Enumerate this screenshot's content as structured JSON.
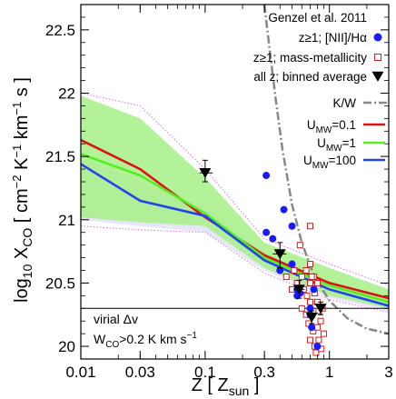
{
  "chart_data": {
    "type": "scatter",
    "xlabel": "Z [ Z",
    "xlabel_sub": "sun",
    "xlabel_end": " ]",
    "ylabel_prefix": "log",
    "ylabel_prefix_sub": "10",
    "ylabel_main": " X",
    "ylabel_main_sub": "CO",
    "ylabel_units": " [ cm",
    "ylabel_units_sup1": "−2",
    "ylabel_units_mid1": " K",
    "ylabel_units_sup2": "−1",
    "ylabel_units_mid2": " km",
    "ylabel_units_sup3": "−1",
    "ylabel_units_end": " s ]",
    "x_scale": "log",
    "xlim": [
      0.01,
      3
    ],
    "ylim": [
      19.9,
      22.7
    ],
    "x_ticks": [
      {
        "value": 0.01,
        "label": "0.01"
      },
      {
        "value": 0.03,
        "label": "0.03"
      },
      {
        "value": 0.1,
        "label": "0.1"
      },
      {
        "value": 0.3,
        "label": "0.3"
      },
      {
        "value": 1,
        "label": "1"
      },
      {
        "value": 3,
        "label": "3"
      }
    ],
    "y_ticks": [
      {
        "value": 20,
        "label": "20"
      },
      {
        "value": 20.5,
        "label": "20.5"
      },
      {
        "value": 21,
        "label": "21"
      },
      {
        "value": 21.5,
        "label": "21.5"
      },
      {
        "value": 22,
        "label": "22"
      },
      {
        "value": 22.5,
        "label": "22.5"
      }
    ],
    "virial_line_y": 20.3,
    "legend": {
      "title": "Genzel et al. 2011",
      "entries": [
        {
          "key": "nii",
          "text": "z≥1; [NII]/Hα"
        },
        {
          "key": "mm",
          "text": "z≥1; mass-metallicity"
        },
        {
          "key": "avg",
          "text": "all z; binned average"
        },
        {
          "key": "kw",
          "text": "K/W"
        },
        {
          "key": "u01",
          "text_main": "U",
          "text_sub": "MW",
          "text_end": "=0.1"
        },
        {
          "key": "u1",
          "text_main": "U",
          "text_sub": "MW",
          "text_end": "=1"
        },
        {
          "key": "u100",
          "text_main": "U",
          "text_sub": "MW",
          "text_end": "=100"
        }
      ]
    },
    "annotation": {
      "line1": "virial Δv",
      "line2_main": "W",
      "line2_sub": "CO",
      "line2_end": ">0.2 K km s",
      "line2_sup": "−1"
    },
    "colors": {
      "nii": "#1a1aff",
      "mm": "#cc2222",
      "avg": "#000000",
      "kw": "#888888",
      "u01": "#dd1111",
      "u1": "#55ee22",
      "u100": "#2244ee",
      "band_green": "#a6f086",
      "band_blue": "#e6e6f8",
      "band_pink": "#e070e0"
    },
    "series": [
      {
        "name": "z≥1; [NII]/Hα",
        "key": "nii",
        "marker": "circle",
        "points": [
          {
            "x": 0.31,
            "y": 21.35
          },
          {
            "x": 0.31,
            "y": 20.9
          },
          {
            "x": 0.35,
            "y": 20.85
          },
          {
            "x": 0.43,
            "y": 21.08
          },
          {
            "x": 0.5,
            "y": 20.95
          },
          {
            "x": 0.4,
            "y": 20.6
          },
          {
            "x": 0.5,
            "y": 20.65
          },
          {
            "x": 0.55,
            "y": 20.45
          },
          {
            "x": 0.55,
            "y": 20.4
          },
          {
            "x": 0.58,
            "y": 20.42
          },
          {
            "x": 0.7,
            "y": 20.25
          },
          {
            "x": 0.72,
            "y": 20.15
          },
          {
            "x": 0.8,
            "y": 20.0
          },
          {
            "x": 0.75,
            "y": 20.45
          },
          {
            "x": 0.7,
            "y": 20.3
          }
        ]
      },
      {
        "name": "z≥1; mass-metallicity",
        "key": "mm",
        "marker": "square",
        "points": [
          {
            "x": 0.58,
            "y": 20.8
          },
          {
            "x": 0.7,
            "y": 20.95
          },
          {
            "x": 0.45,
            "y": 20.55
          },
          {
            "x": 0.52,
            "y": 20.6
          },
          {
            "x": 0.6,
            "y": 20.55
          },
          {
            "x": 0.65,
            "y": 20.6
          },
          {
            "x": 0.7,
            "y": 20.65
          },
          {
            "x": 0.75,
            "y": 20.55
          },
          {
            "x": 0.62,
            "y": 20.45
          },
          {
            "x": 0.66,
            "y": 20.4
          },
          {
            "x": 0.7,
            "y": 20.5
          },
          {
            "x": 0.76,
            "y": 20.42
          },
          {
            "x": 0.8,
            "y": 20.35
          },
          {
            "x": 0.6,
            "y": 20.3
          },
          {
            "x": 0.65,
            "y": 20.25
          },
          {
            "x": 0.7,
            "y": 20.35
          },
          {
            "x": 0.82,
            "y": 20.28
          },
          {
            "x": 0.88,
            "y": 20.3
          },
          {
            "x": 0.68,
            "y": 20.18
          },
          {
            "x": 0.74,
            "y": 20.12
          },
          {
            "x": 0.8,
            "y": 20.15
          },
          {
            "x": 0.85,
            "y": 20.2
          },
          {
            "x": 0.7,
            "y": 20.05
          },
          {
            "x": 0.76,
            "y": 20.0
          },
          {
            "x": 0.82,
            "y": 20.05
          },
          {
            "x": 0.9,
            "y": 20.1
          },
          {
            "x": 0.78,
            "y": 19.95
          },
          {
            "x": 0.86,
            "y": 19.98
          },
          {
            "x": 0.5,
            "y": 20.45
          },
          {
            "x": 0.55,
            "y": 20.5
          },
          {
            "x": 0.72,
            "y": 20.55
          },
          {
            "x": 0.8,
            "y": 20.5
          }
        ]
      },
      {
        "name": "all z; binned average",
        "key": "avg",
        "marker": "triangle-down",
        "points": [
          {
            "x": 0.1,
            "y": 21.37,
            "xerr": [
              0.09,
              0.115
            ],
            "yerr": [
              21.3,
              21.47
            ]
          },
          {
            "x": 0.4,
            "y": 20.73,
            "xerr": [
              0.35,
              0.45
            ],
            "yerr": [
              20.62,
              20.82
            ]
          },
          {
            "x": 0.57,
            "y": 20.45,
            "xerr": [
              0.52,
              0.63
            ],
            "yerr": [
              20.38,
              20.52
            ]
          },
          {
            "x": 0.72,
            "y": 20.23,
            "xerr": [
              0.67,
              0.77
            ],
            "yerr": [
              20.18,
              20.28
            ]
          },
          {
            "x": 0.85,
            "y": 20.3,
            "xerr": [
              0.8,
              0.92
            ],
            "yerr": [
              20.25,
              20.35
            ]
          }
        ]
      },
      {
        "name": "K/W",
        "key": "kw",
        "type": "line",
        "x": [
          0.3,
          0.33,
          0.37,
          0.42,
          0.5,
          0.6,
          0.75,
          1.0,
          1.4,
          2.0,
          3.0
        ],
        "y": [
          22.7,
          22.35,
          21.95,
          21.55,
          21.12,
          20.82,
          20.56,
          20.36,
          20.22,
          20.14,
          20.1
        ]
      },
      {
        "name": "U=0.1",
        "key": "u01",
        "type": "line",
        "x": [
          0.01,
          0.03,
          0.1,
          0.3,
          1,
          3
        ],
        "y": [
          21.63,
          21.4,
          21.02,
          20.72,
          20.5,
          20.38
        ]
      },
      {
        "name": "U=1",
        "key": "u1",
        "type": "line",
        "x": [
          0.01,
          0.03,
          0.1,
          0.3,
          1,
          3
        ],
        "y": [
          21.52,
          21.35,
          21.05,
          20.7,
          20.48,
          20.35
        ]
      },
      {
        "name": "U=100",
        "key": "u100",
        "type": "line",
        "x": [
          0.01,
          0.03,
          0.1,
          0.3,
          1,
          3
        ],
        "y": [
          21.44,
          21.15,
          21.03,
          20.68,
          20.45,
          20.32
        ]
      }
    ],
    "bands": {
      "green": {
        "x": [
          0.01,
          0.03,
          0.1,
          0.3,
          1,
          3
        ],
        "upper": [
          21.98,
          21.8,
          21.33,
          20.82,
          20.62,
          20.45
        ],
        "lower": [
          21.02,
          20.98,
          20.95,
          20.62,
          20.4,
          20.3
        ]
      },
      "blue": {
        "x": [
          0.01,
          0.03,
          0.1,
          0.3,
          1,
          3
        ],
        "upper": [
          21.5,
          21.3,
          21.1,
          20.75,
          20.52,
          20.38
        ],
        "lower": [
          21.0,
          20.95,
          20.9,
          20.6,
          20.38,
          20.28
        ]
      },
      "pink_upper": {
        "x": [
          0.01,
          0.03,
          0.1,
          0.3,
          1,
          3
        ],
        "y": [
          22.0,
          21.9,
          21.4,
          20.85,
          20.65,
          20.48
        ]
      },
      "pink_lower": {
        "x": [
          0.01,
          0.03,
          0.1,
          0.3,
          1,
          3
        ],
        "y": [
          20.95,
          20.92,
          20.9,
          20.58,
          20.37,
          20.27
        ]
      }
    }
  }
}
